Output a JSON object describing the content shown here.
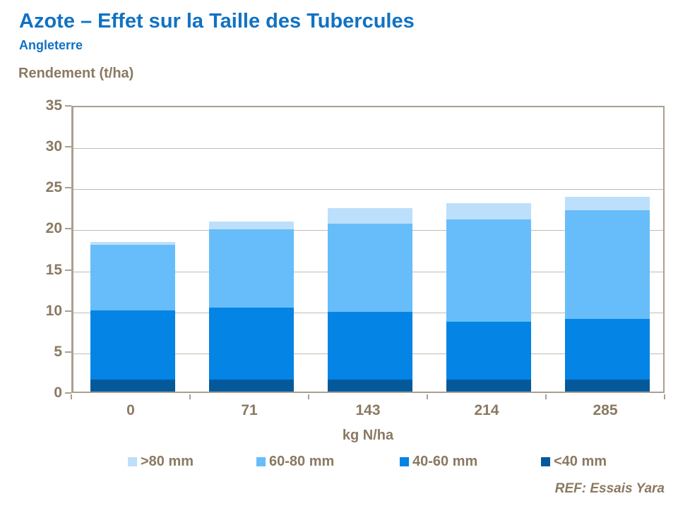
{
  "header": {
    "title": "Azote – Effet sur la Taille des Tubercules",
    "subtitle": "Angleterre"
  },
  "chart_data": {
    "type": "bar",
    "stacked": true,
    "ylabel": "Rendement (t/ha)",
    "xlabel": "kg N/ha",
    "categories": [
      "0",
      "71",
      "143",
      "214",
      "285"
    ],
    "series": [
      {
        "name": "<40 mm",
        "color": "#04599B",
        "values": [
          1.5,
          1.5,
          1.5,
          1.5,
          1.5
        ]
      },
      {
        "name": "40-60 mm",
        "color": "#0484E4",
        "values": [
          8.4,
          8.7,
          8.2,
          7.0,
          7.4
        ]
      },
      {
        "name": "60-80 mm",
        "color": "#66BDFA",
        "values": [
          8.0,
          9.6,
          10.8,
          12.5,
          13.2
        ]
      },
      {
        "name": ">80 mm",
        "color": "#BCDFFB",
        "values": [
          0.3,
          0.9,
          1.9,
          2.0,
          1.6
        ]
      }
    ],
    "stack_totals": [
      18.2,
      20.7,
      22.4,
      23.0,
      23.7
    ],
    "ylim": [
      0,
      35
    ],
    "ytick_step": 5,
    "grid": true,
    "legend_position": "bottom",
    "legend_order": [
      ">80 mm",
      "60-80 mm",
      "40-60 mm",
      "<40 mm"
    ]
  },
  "legend_x_positions": [
    181,
    363,
    566,
    766
  ],
  "footer": {
    "ref": "REF: Essais Yara"
  },
  "colors": {
    "title_blue": "#1072C4",
    "text_brown": "#8A7962",
    "axis_frame": "#A9A092",
    "gridline": "#C3BBAE"
  }
}
